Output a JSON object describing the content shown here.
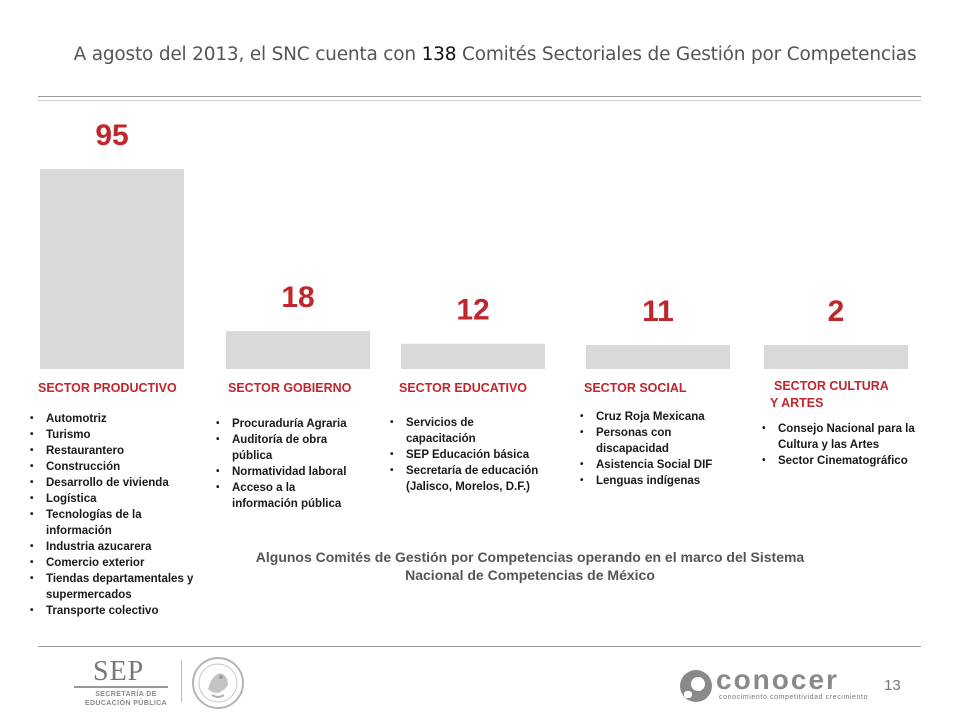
{
  "title": {
    "before": "A agosto del 2013, el SNC cuenta con ",
    "number": "138",
    "after": " Comités Sectoriales de Gestión por Competencias"
  },
  "chart_data": {
    "type": "bar",
    "categories": [
      "SECTOR PRODUCTIVO",
      "SECTOR GOBIERNO",
      "SECTOR EDUCATIVO",
      "SECTOR SOCIAL",
      "SECTOR CULTURA Y ARTES"
    ],
    "values": [
      95,
      18,
      12,
      11,
      2
    ],
    "data_labels": [
      "95",
      "18",
      "12",
      "11",
      "2"
    ],
    "bar_color": "#d9d9d9",
    "label_color": "#c0262d",
    "ylim": [
      0,
      100
    ],
    "grid": false,
    "legend": "none"
  },
  "sectors": [
    {
      "label_lines": [
        "SECTOR PRODUCTIVO"
      ],
      "items": [
        "Automotriz",
        "Turismo",
        "Restaurantero",
        "Construcción",
        "Desarrollo de vivienda",
        "Logística",
        "Tecnologías de la información",
        "Industria azucarera",
        "Comercio exterior",
        "Tiendas departamentales y supermercados",
        "Transporte colectivo"
      ]
    },
    {
      "label_lines": [
        "SECTOR GOBIERNO"
      ],
      "items": [
        "Procuraduría Agraria",
        "Auditoría de obra pública",
        "Normatividad laboral",
        "Acceso a la información pública"
      ]
    },
    {
      "label_lines": [
        "SECTOR EDUCATIVO"
      ],
      "items": [
        "Servicios de capacitación",
        "SEP Educación básica",
        "Secretaría de educación (Jalisco, Morelos, D.F.)"
      ]
    },
    {
      "label_lines": [
        "SECTOR SOCIAL"
      ],
      "items": [
        "Cruz Roja Mexicana",
        "Personas con discapacidad",
        "Asistencia Social DIF",
        "Lenguas indígenas"
      ]
    },
    {
      "label_lines": [
        "SECTOR CULTURA",
        "Y ARTES"
      ],
      "items": [
        "Consejo Nacional para la Cultura y las Artes",
        "Sector Cinematográfico"
      ]
    }
  ],
  "caption": "Algunos Comités de Gestión por Competencias  operando en el marco del Sistema Nacional de Competencias de México",
  "footer": {
    "sep_logo_text": "SEP",
    "sep_subtitle": "SECRETARÍA DE EDUCACIÓN PÚBLICA",
    "conocer_logo_text": "conocer",
    "conocer_tagline": "conocimiento  competitividad  crecimiento",
    "page_number": "13",
    "icons": [
      "sep-logo",
      "mexican-coat-of-arms-seal",
      "conocer-logo-icon"
    ]
  }
}
